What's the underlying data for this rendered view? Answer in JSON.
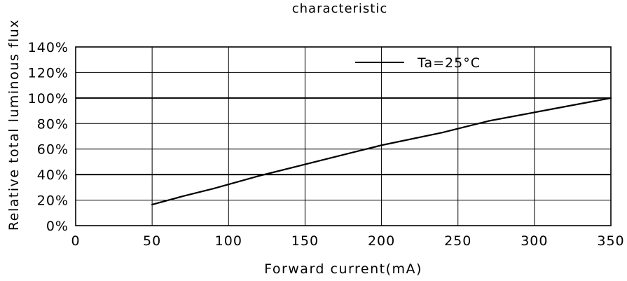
{
  "chart_data": {
    "type": "line",
    "title": "characteristic",
    "xlabel": "Forward current(mA)",
    "ylabel": "Relative total luminous flux",
    "xlim": [
      0,
      350
    ],
    "ylim": [
      0,
      140
    ],
    "x_ticks": [
      0,
      50,
      100,
      150,
      200,
      250,
      300,
      350
    ],
    "x_tick_labels": [
      "0",
      "50",
      "100",
      "150",
      "200",
      "250",
      "300",
      "350"
    ],
    "y_ticks": [
      0,
      20,
      40,
      60,
      80,
      100,
      120,
      140
    ],
    "y_tick_labels": [
      "0%",
      "20%",
      "40%",
      "60%",
      "80%",
      "100%",
      "120%",
      "140%"
    ],
    "grid": true,
    "emphasized_gridlines_y": [
      40,
      100
    ],
    "legend_position": "top-right",
    "series": [
      {
        "name": "Ta=25°C",
        "color": "#000000",
        "x": [
          50,
          70,
          90,
          120,
          150,
          200,
          240,
          270,
          310,
          350
        ],
        "y": [
          16.5,
          23,
          29,
          39,
          48,
          63,
          73,
          82,
          91,
          100
        ]
      }
    ]
  }
}
